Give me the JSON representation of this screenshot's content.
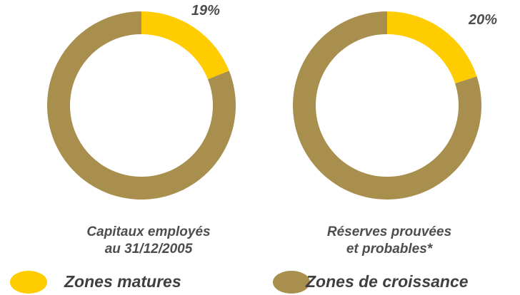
{
  "chart_data": [
    {
      "type": "pie",
      "donut": true,
      "title": [
        "Capitaux employés",
        "au 31/12/2005"
      ],
      "values": [
        19,
        81
      ],
      "value_labels": [
        "19%",
        null
      ]
    },
    {
      "type": "pie",
      "donut": true,
      "title": [
        "Réserves prouvées",
        "et probables*"
      ],
      "values": [
        20,
        80
      ],
      "value_labels": [
        "20%",
        null
      ]
    }
  ],
  "legend": [
    {
      "name": "Zones matures",
      "color": "#ffcc00"
    },
    {
      "name": "Zones de croissance",
      "color": "#a88f4e"
    }
  ]
}
